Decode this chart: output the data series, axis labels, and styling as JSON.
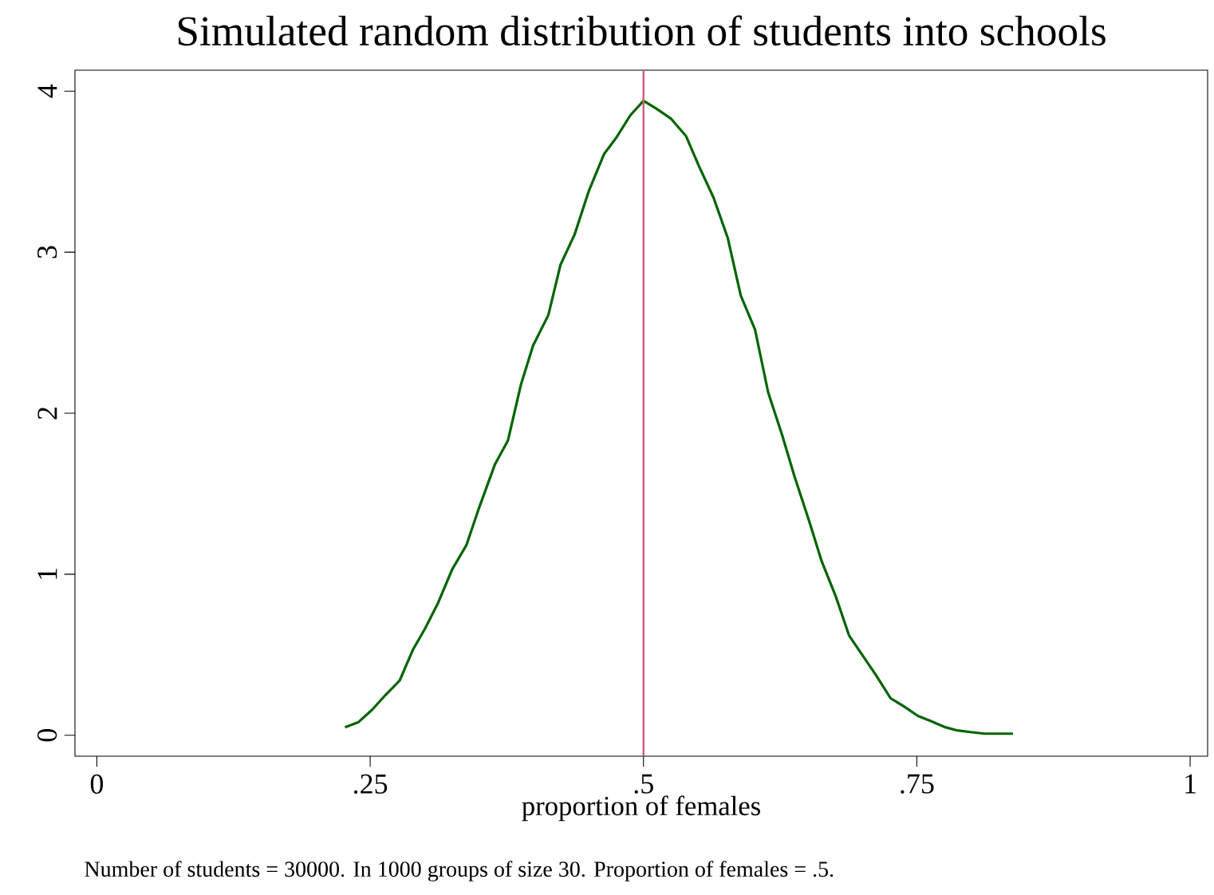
{
  "chart_data": {
    "type": "line",
    "title": "Simulated random distribution of students into schools",
    "xlabel": "proportion of females",
    "annotations": [
      "Number of students = 30000. In 1000 groups of size 30. Proportion of females = .5."
    ],
    "x": [
      0.227,
      0.239,
      0.252,
      0.264,
      0.277,
      0.289,
      0.3,
      0.312,
      0.325,
      0.338,
      0.35,
      0.364,
      0.376,
      0.388,
      0.399,
      0.413,
      0.424,
      0.437,
      0.45,
      0.464,
      0.475,
      0.488,
      0.5,
      0.512,
      0.525,
      0.539,
      0.551,
      0.564,
      0.577,
      0.589,
      0.602,
      0.614,
      0.627,
      0.638,
      0.652,
      0.663,
      0.676,
      0.688,
      0.701,
      0.713,
      0.726,
      0.738,
      0.751,
      0.762,
      0.776,
      0.787,
      0.799,
      0.812,
      0.838
    ],
    "series": [
      {
        "color": "#006400",
        "values": [
          0.05,
          0.08,
          0.16,
          0.25,
          0.34,
          0.53,
          0.66,
          0.82,
          1.03,
          1.18,
          1.42,
          1.68,
          1.83,
          2.18,
          2.42,
          2.61,
          2.92,
          3.11,
          3.38,
          3.61,
          3.71,
          3.85,
          3.94,
          3.89,
          3.83,
          3.72,
          3.53,
          3.34,
          3.09,
          2.73,
          2.52,
          2.13,
          1.86,
          1.61,
          1.32,
          1.08,
          0.86,
          0.62,
          0.49,
          0.37,
          0.23,
          0.18,
          0.12,
          0.09,
          0.05,
          0.03,
          0.02,
          0.01,
          0.01
        ]
      }
    ],
    "xlim": [
      -0.02,
      1.016
    ],
    "ylim": [
      -0.13,
      4.13
    ],
    "xticks": [
      0,
      {
        "value": 0.25,
        "label": ".25"
      },
      {
        "value": 0.5,
        "label": ".5"
      },
      {
        "value": 0.75,
        "label": ".75"
      },
      1
    ],
    "yticks": [
      0,
      1,
      2,
      3,
      4
    ],
    "ref_lines": [
      {
        "axis": "x",
        "value": 0.5,
        "color": "#c8607a"
      }
    ],
    "grid": false
  }
}
